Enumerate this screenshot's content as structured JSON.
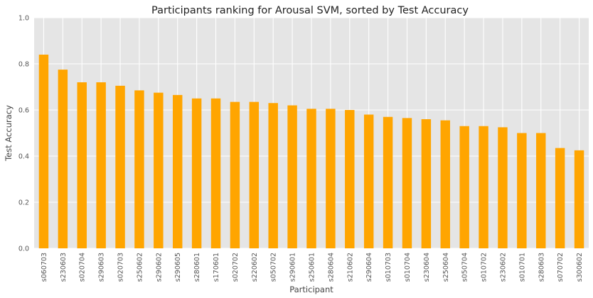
{
  "chart_data": {
    "type": "bar",
    "title": "Participants ranking for Arousal SVM, sorted by Test Accuracy",
    "xlabel": "Participant",
    "ylabel": "Test Accuracy",
    "ylim": [
      0,
      1.0
    ],
    "yticks": [
      "0.0",
      "0.2",
      "0.4",
      "0.6",
      "0.8",
      "1.0"
    ],
    "grid": true,
    "bar_color": "#FFA500",
    "background_color": "#E5E5E5",
    "grid_color": "#FFFFFF",
    "categories": [
      "s060703",
      "s230603",
      "s020704",
      "s290603",
      "s020703",
      "s250602",
      "s290602",
      "s290605",
      "s280601",
      "s170601",
      "s020702",
      "s220602",
      "s050702",
      "s290601",
      "s250601",
      "s280604",
      "s210602",
      "s290604",
      "s010703",
      "s010704",
      "s230604",
      "s250604",
      "s050704",
      "s010702",
      "s230602",
      "s010701",
      "s280603",
      "s070702",
      "s300602"
    ],
    "values": [
      0.84,
      0.775,
      0.72,
      0.72,
      0.705,
      0.685,
      0.675,
      0.665,
      0.65,
      0.65,
      0.635,
      0.635,
      0.63,
      0.62,
      0.605,
      0.605,
      0.6,
      0.58,
      0.57,
      0.565,
      0.56,
      0.555,
      0.53,
      0.53,
      0.525,
      0.5,
      0.5,
      0.435,
      0.425
    ]
  }
}
